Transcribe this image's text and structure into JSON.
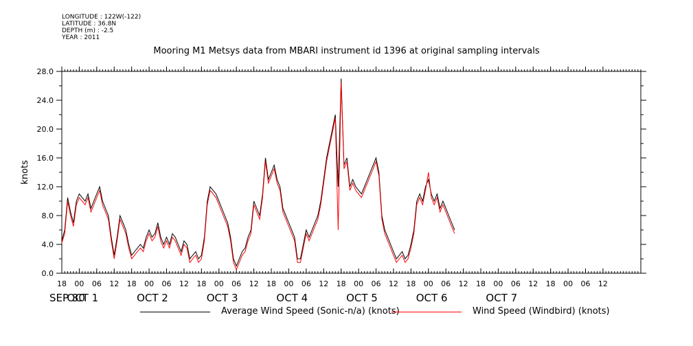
{
  "header": {
    "longitude": "LONGITUDE : 122W(-122)",
    "latitude": "LATITUDE : 36.8N",
    "depth": "DEPTH (m) : -2.5",
    "year": "YEAR : 2011"
  },
  "chart_data": {
    "type": "line",
    "title": "Mooring M1 Metsys data from MBARI instrument id 1396 at original sampling intervals",
    "ylabel": "knots",
    "xlabel": "",
    "ylim": [
      0,
      28
    ],
    "yticks": [
      "0.0",
      "4.0",
      "8.0",
      "12.0",
      "16.0",
      "20.0",
      "24.0",
      "28.0"
    ],
    "xlim_hours": [
      -6,
      13
    ],
    "x_units": "hours from 2011-09-30 00:00",
    "hour_ticks": [
      {
        "t": -6,
        "label": "18"
      },
      {
        "t": 0,
        "label": "00"
      },
      {
        "t": 6,
        "label": "06"
      },
      {
        "t": 12,
        "label": "12"
      },
      {
        "t": 18,
        "label": "18"
      },
      {
        "t": 24,
        "label": "00"
      },
      {
        "t": 30,
        "label": "06"
      },
      {
        "t": 36,
        "label": "12"
      },
      {
        "t": 42,
        "label": "18"
      },
      {
        "t": 48,
        "label": "00"
      },
      {
        "t": 54,
        "label": "06"
      },
      {
        "t": 60,
        "label": "12"
      },
      {
        "t": 66,
        "label": "18"
      },
      {
        "t": 72,
        "label": "00"
      },
      {
        "t": 78,
        "label": "06"
      },
      {
        "t": 84,
        "label": "12"
      },
      {
        "t": 90,
        "label": "18"
      },
      {
        "t": 96,
        "label": "00"
      },
      {
        "t": 102,
        "label": "06"
      },
      {
        "t": 108,
        "label": "12"
      },
      {
        "t": 114,
        "label": "18"
      },
      {
        "t": 120,
        "label": "00"
      },
      {
        "t": 126,
        "label": "06"
      },
      {
        "t": 132,
        "label": "12"
      },
      {
        "t": 138,
        "label": "18"
      },
      {
        "t": 144,
        "label": "00"
      },
      {
        "t": 150,
        "label": "06"
      },
      {
        "t": 156,
        "label": "12"
      },
      {
        "t": 162,
        "label": "18"
      },
      {
        "t": 168,
        "label": "00"
      },
      {
        "t": 174,
        "label": "06"
      },
      {
        "t": 180,
        "label": "12"
      }
    ],
    "date_labels": [
      {
        "t": -6,
        "label": "SEP 30"
      },
      {
        "t": 0,
        "label": "OCT  1"
      },
      {
        "t": 24,
        "label": "OCT  2"
      },
      {
        "t": 48,
        "label": "OCT  3"
      },
      {
        "t": 72,
        "label": "OCT  4"
      },
      {
        "t": 96,
        "label": "OCT  5"
      },
      {
        "t": 120,
        "label": "OCT  6"
      },
      {
        "t": 144,
        "label": "OCT  7"
      }
    ],
    "series": [
      {
        "name": "Average Wind Speed (Sonic-n/a) (knots)",
        "color": "#000000",
        "points": [
          [
            -6,
            4.5
          ],
          [
            -5,
            6
          ],
          [
            -4,
            10.5
          ],
          [
            -3,
            8.5
          ],
          [
            -2,
            7
          ],
          [
            -1,
            10
          ],
          [
            0,
            11
          ],
          [
            1,
            10.5
          ],
          [
            2,
            10
          ],
          [
            3,
            11
          ],
          [
            4,
            9
          ],
          [
            5,
            10
          ],
          [
            6,
            11
          ],
          [
            7,
            12
          ],
          [
            8,
            10
          ],
          [
            9,
            9
          ],
          [
            10,
            8
          ],
          [
            11,
            5
          ],
          [
            12,
            2.5
          ],
          [
            13,
            5
          ],
          [
            14,
            8
          ],
          [
            15,
            7
          ],
          [
            16,
            6
          ],
          [
            17,
            4
          ],
          [
            18,
            2.5
          ],
          [
            19,
            3
          ],
          [
            20,
            3.5
          ],
          [
            21,
            4
          ],
          [
            22,
            3.5
          ],
          [
            23,
            5
          ],
          [
            24,
            6
          ],
          [
            25,
            5
          ],
          [
            26,
            5.5
          ],
          [
            27,
            7
          ],
          [
            28,
            5
          ],
          [
            29,
            4
          ],
          [
            30,
            5
          ],
          [
            31,
            4
          ],
          [
            32,
            5.5
          ],
          [
            33,
            5
          ],
          [
            34,
            4
          ],
          [
            35,
            3
          ],
          [
            36,
            4.5
          ],
          [
            37,
            4
          ],
          [
            38,
            2
          ],
          [
            39,
            2.5
          ],
          [
            40,
            3
          ],
          [
            41,
            2
          ],
          [
            42,
            2.5
          ],
          [
            43,
            5
          ],
          [
            44,
            10
          ],
          [
            45,
            12
          ],
          [
            46,
            11.5
          ],
          [
            47,
            11
          ],
          [
            48,
            10
          ],
          [
            49,
            9
          ],
          [
            50,
            8
          ],
          [
            51,
            7
          ],
          [
            52,
            5
          ],
          [
            53,
            2
          ],
          [
            54,
            1
          ],
          [
            55,
            2
          ],
          [
            56,
            3
          ],
          [
            57,
            3.5
          ],
          [
            58,
            5
          ],
          [
            59,
            6
          ],
          [
            60,
            10
          ],
          [
            61,
            9
          ],
          [
            62,
            8
          ],
          [
            63,
            11
          ],
          [
            64,
            16
          ],
          [
            65,
            13
          ],
          [
            66,
            14
          ],
          [
            67,
            15
          ],
          [
            68,
            13
          ],
          [
            69,
            12
          ],
          [
            70,
            9
          ],
          [
            71,
            8
          ],
          [
            72,
            7
          ],
          [
            73,
            6
          ],
          [
            74,
            5
          ],
          [
            75,
            2
          ],
          [
            76,
            2
          ],
          [
            77,
            4
          ],
          [
            78,
            6
          ],
          [
            79,
            5
          ],
          [
            80,
            6
          ],
          [
            81,
            7
          ],
          [
            82,
            8
          ],
          [
            83,
            10
          ],
          [
            84,
            13
          ],
          [
            85,
            16
          ],
          [
            86,
            18
          ],
          [
            87,
            20
          ],
          [
            88,
            22
          ],
          [
            89,
            12
          ],
          [
            90,
            27
          ],
          [
            91,
            15
          ],
          [
            92,
            16
          ],
          [
            93,
            12
          ],
          [
            94,
            13
          ],
          [
            95,
            12
          ],
          [
            96,
            11.5
          ],
          [
            97,
            11
          ],
          [
            98,
            12
          ],
          [
            99,
            13
          ],
          [
            100,
            14
          ],
          [
            101,
            15
          ],
          [
            102,
            16
          ],
          [
            103,
            14
          ],
          [
            104,
            8
          ],
          [
            105,
            6
          ],
          [
            106,
            5
          ],
          [
            107,
            4
          ],
          [
            108,
            3
          ],
          [
            109,
            2
          ],
          [
            110,
            2.5
          ],
          [
            111,
            3
          ],
          [
            112,
            2
          ],
          [
            113,
            2.5
          ],
          [
            114,
            4
          ],
          [
            115,
            6
          ],
          [
            116,
            10
          ],
          [
            117,
            11
          ],
          [
            118,
            10
          ],
          [
            119,
            12
          ],
          [
            120,
            13
          ],
          [
            121,
            11
          ],
          [
            122,
            10
          ],
          [
            123,
            11
          ],
          [
            124,
            9
          ],
          [
            125,
            10
          ],
          [
            126,
            9
          ],
          [
            127,
            8
          ],
          [
            128,
            7
          ],
          [
            129,
            6
          ]
        ]
      },
      {
        "name": "Wind Speed (Windbird) (knots)",
        "color": "#ff0000",
        "points": [
          [
            -6,
            4.2
          ],
          [
            -5,
            5.5
          ],
          [
            -4,
            10
          ],
          [
            -3,
            8
          ],
          [
            -2,
            6.5
          ],
          [
            -1,
            9.5
          ],
          [
            0,
            10.5
          ],
          [
            1,
            10
          ],
          [
            2,
            9.5
          ],
          [
            3,
            10.5
          ],
          [
            4,
            8.5
          ],
          [
            5,
            9.5
          ],
          [
            6,
            10.5
          ],
          [
            7,
            11.5
          ],
          [
            8,
            9.5
          ],
          [
            9,
            8.5
          ],
          [
            10,
            7.5
          ],
          [
            11,
            4.5
          ],
          [
            12,
            2
          ],
          [
            13,
            4.5
          ],
          [
            14,
            7.5
          ],
          [
            15,
            6.5
          ],
          [
            16,
            5.5
          ],
          [
            17,
            3.5
          ],
          [
            18,
            2
          ],
          [
            19,
            2.5
          ],
          [
            20,
            3
          ],
          [
            21,
            3.5
          ],
          [
            22,
            3
          ],
          [
            23,
            4.5
          ],
          [
            24,
            5.5
          ],
          [
            25,
            4.5
          ],
          [
            26,
            5
          ],
          [
            27,
            6.5
          ],
          [
            28,
            4.5
          ],
          [
            29,
            3.5
          ],
          [
            30,
            4.5
          ],
          [
            31,
            3.5
          ],
          [
            32,
            5
          ],
          [
            33,
            4.5
          ],
          [
            34,
            3.5
          ],
          [
            35,
            2.5
          ],
          [
            36,
            4
          ],
          [
            37,
            3.5
          ],
          [
            38,
            1.5
          ],
          [
            39,
            2
          ],
          [
            40,
            2.5
          ],
          [
            41,
            1.5
          ],
          [
            42,
            2
          ],
          [
            43,
            4.5
          ],
          [
            44,
            9.5
          ],
          [
            45,
            11.5
          ],
          [
            46,
            11
          ],
          [
            47,
            10.5
          ],
          [
            48,
            9.5
          ],
          [
            49,
            8.5
          ],
          [
            50,
            7.5
          ],
          [
            51,
            6.5
          ],
          [
            52,
            4.5
          ],
          [
            53,
            1.5
          ],
          [
            54,
            0.5
          ],
          [
            55,
            1.5
          ],
          [
            56,
            2.5
          ],
          [
            57,
            3
          ],
          [
            58,
            4.5
          ],
          [
            59,
            5.5
          ],
          [
            60,
            9.5
          ],
          [
            61,
            8.5
          ],
          [
            62,
            7.5
          ],
          [
            63,
            10.5
          ],
          [
            64,
            15.5
          ],
          [
            65,
            12.5
          ],
          [
            66,
            13.5
          ],
          [
            67,
            14.5
          ],
          [
            68,
            12.5
          ],
          [
            69,
            11.5
          ],
          [
            70,
            8.5
          ],
          [
            71,
            7.5
          ],
          [
            72,
            6.5
          ],
          [
            73,
            5.5
          ],
          [
            74,
            4.5
          ],
          [
            75,
            1.5
          ],
          [
            76,
            1.5
          ],
          [
            77,
            3.5
          ],
          [
            78,
            5.5
          ],
          [
            79,
            4.5
          ],
          [
            80,
            5.5
          ],
          [
            81,
            6.5
          ],
          [
            82,
            7.5
          ],
          [
            83,
            9.5
          ],
          [
            84,
            12.5
          ],
          [
            85,
            15.5
          ],
          [
            86,
            17.5
          ],
          [
            87,
            19.5
          ],
          [
            88,
            21.5
          ],
          [
            89,
            6
          ],
          [
            90,
            26.5
          ],
          [
            91,
            14.5
          ],
          [
            92,
            15.5
          ],
          [
            93,
            11.5
          ],
          [
            94,
            12.5
          ],
          [
            95,
            11.5
          ],
          [
            96,
            11
          ],
          [
            97,
            10.5
          ],
          [
            98,
            11.5
          ],
          [
            99,
            12.5
          ],
          [
            100,
            13.5
          ],
          [
            101,
            14.5
          ],
          [
            102,
            15.5
          ],
          [
            103,
            13.5
          ],
          [
            104,
            7.5
          ],
          [
            105,
            5.5
          ],
          [
            106,
            4.5
          ],
          [
            107,
            3.5
          ],
          [
            108,
            2.5
          ],
          [
            109,
            1.5
          ],
          [
            110,
            2
          ],
          [
            111,
            2.5
          ],
          [
            112,
            1.5
          ],
          [
            113,
            2
          ],
          [
            114,
            3.5
          ],
          [
            115,
            5.5
          ],
          [
            116,
            9.5
          ],
          [
            117,
            10.5
          ],
          [
            118,
            9.5
          ],
          [
            119,
            11.5
          ],
          [
            120,
            14
          ],
          [
            121,
            10.5
          ],
          [
            122,
            9.5
          ],
          [
            123,
            10.5
          ],
          [
            124,
            8.5
          ],
          [
            125,
            9.5
          ],
          [
            126,
            8.5
          ],
          [
            127,
            7.5
          ],
          [
            128,
            6.5
          ],
          [
            129,
            5.5
          ]
        ]
      }
    ]
  }
}
